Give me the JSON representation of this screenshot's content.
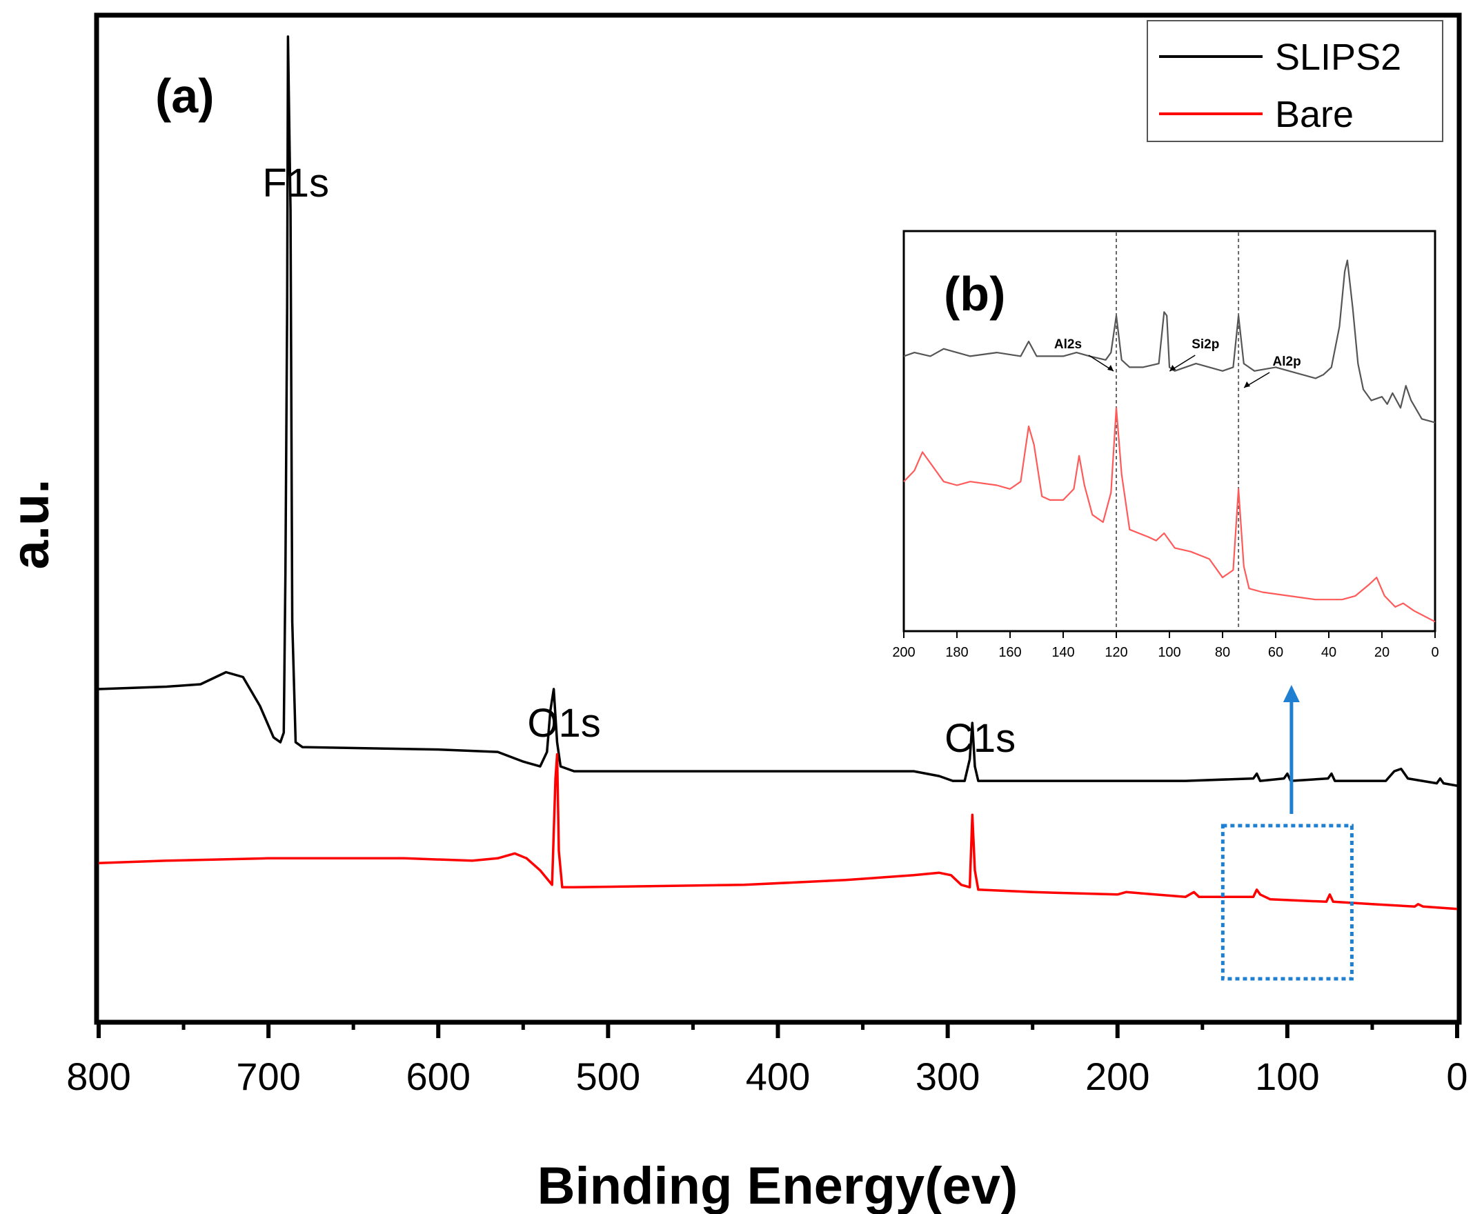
{
  "chart_data": [
    {
      "type": "line",
      "panel_label": "(a)",
      "xlabel": "Binding Energy(ev)",
      "ylabel": "a.u.",
      "xlim": [
        800,
        0
      ],
      "x_ticks": [
        800,
        700,
        600,
        500,
        400,
        300,
        200,
        100,
        0
      ],
      "legend": {
        "position": "top-right",
        "entries": [
          "SLIPS2",
          "Bare"
        ]
      },
      "series": [
        {
          "name": "SLIPS2",
          "color": "#000000",
          "points": [
            [
              800,
              1.92
            ],
            [
              760,
              1.93
            ],
            [
              740,
              1.94
            ],
            [
              725,
              1.99
            ],
            [
              715,
              1.97
            ],
            [
              705,
              1.85
            ],
            [
              697,
              1.72
            ],
            [
              693,
              1.7
            ],
            [
              691,
              1.74
            ],
            [
              690,
              2.4
            ],
            [
              689,
              3.5
            ],
            [
              688.5,
              4.62
            ],
            [
              687,
              3.9
            ],
            [
              686,
              2.2
            ],
            [
              684,
              1.7
            ],
            [
              680,
              1.68
            ],
            [
              600,
              1.67
            ],
            [
              565,
              1.66
            ],
            [
              550,
              1.62
            ],
            [
              540,
              1.6
            ],
            [
              536,
              1.66
            ],
            [
              534,
              1.83
            ],
            [
              532,
              1.92
            ],
            [
              530,
              1.7
            ],
            [
              528,
              1.6
            ],
            [
              520,
              1.58
            ],
            [
              420,
              1.58
            ],
            [
              320,
              1.58
            ],
            [
              305,
              1.56
            ],
            [
              297,
              1.54
            ],
            [
              290,
              1.54
            ],
            [
              287,
              1.63
            ],
            [
              285.5,
              1.78
            ],
            [
              284,
              1.6
            ],
            [
              282,
              1.54
            ],
            [
              220,
              1.54
            ],
            [
              160,
              1.54
            ],
            [
              120,
              1.55
            ],
            [
              118,
              1.57
            ],
            [
              116,
              1.54
            ],
            [
              102,
              1.55
            ],
            [
              100,
              1.57
            ],
            [
              98,
              1.54
            ],
            [
              76,
              1.55
            ],
            [
              74,
              1.57
            ],
            [
              72,
              1.54
            ],
            [
              42,
              1.54
            ],
            [
              37,
              1.58
            ],
            [
              33,
              1.59
            ],
            [
              29,
              1.55
            ],
            [
              12,
              1.53
            ],
            [
              10,
              1.55
            ],
            [
              8,
              1.53
            ],
            [
              0,
              1.52
            ]
          ]
        },
        {
          "name": "Bare",
          "color": "#ff0000",
          "points": [
            [
              800,
              1.2
            ],
            [
              760,
              1.21
            ],
            [
              700,
              1.22
            ],
            [
              620,
              1.22
            ],
            [
              580,
              1.21
            ],
            [
              565,
              1.22
            ],
            [
              555,
              1.24
            ],
            [
              548,
              1.22
            ],
            [
              540,
              1.17
            ],
            [
              533,
              1.11
            ],
            [
              531,
              1.55
            ],
            [
              530,
              1.65
            ],
            [
              529,
              1.25
            ],
            [
              527,
              1.1
            ],
            [
              520,
              1.1
            ],
            [
              420,
              1.11
            ],
            [
              360,
              1.13
            ],
            [
              320,
              1.15
            ],
            [
              305,
              1.16
            ],
            [
              298,
              1.15
            ],
            [
              292,
              1.11
            ],
            [
              287,
              1.1
            ],
            [
              285.5,
              1.4
            ],
            [
              284,
              1.17
            ],
            [
              282,
              1.09
            ],
            [
              250,
              1.08
            ],
            [
              200,
              1.07
            ],
            [
              195,
              1.08
            ],
            [
              160,
              1.06
            ],
            [
              155,
              1.08
            ],
            [
              152,
              1.06
            ],
            [
              120,
              1.06
            ],
            [
              118,
              1.09
            ],
            [
              116,
              1.07
            ],
            [
              110,
              1.05
            ],
            [
              77,
              1.04
            ],
            [
              75,
              1.07
            ],
            [
              73,
              1.04
            ],
            [
              50,
              1.03
            ],
            [
              25,
              1.02
            ],
            [
              23,
              1.03
            ],
            [
              20,
              1.02
            ],
            [
              0,
              1.01
            ]
          ]
        }
      ],
      "peak_labels": [
        {
          "text": "F1s",
          "x": 688
        },
        {
          "text": "O1s",
          "x": 530
        },
        {
          "text": "C1s",
          "x": 285
        }
      ],
      "zoom_box": {
        "x_range": [
          138,
          62
        ],
        "arrow": "up",
        "color": "#1f7fd0"
      }
    },
    {
      "type": "line",
      "panel_label": "(b)",
      "xlim": [
        200,
        0
      ],
      "x_ticks": [
        200,
        180,
        160,
        140,
        120,
        100,
        80,
        60,
        40,
        20,
        0
      ],
      "reference_lines": [
        120,
        74
      ],
      "series": [
        {
          "name": "SLIPS2",
          "color": "#555555",
          "points": [
            [
              200,
              0.72
            ],
            [
              196,
              0.73
            ],
            [
              190,
              0.72
            ],
            [
              185,
              0.74
            ],
            [
              180,
              0.73
            ],
            [
              175,
              0.72
            ],
            [
              165,
              0.73
            ],
            [
              156,
              0.72
            ],
            [
              153,
              0.76
            ],
            [
              150,
              0.72
            ],
            [
              140,
              0.72
            ],
            [
              135,
              0.73
            ],
            [
              130,
              0.72
            ],
            [
              124,
              0.71
            ],
            [
              122,
              0.73
            ],
            [
              120,
              0.83
            ],
            [
              118,
              0.71
            ],
            [
              115,
              0.69
            ],
            [
              110,
              0.69
            ],
            [
              104,
              0.7
            ],
            [
              102,
              0.84
            ],
            [
              101,
              0.83
            ],
            [
              100,
              0.69
            ],
            [
              98,
              0.68
            ],
            [
              90,
              0.7
            ],
            [
              85,
              0.69
            ],
            [
              80,
              0.68
            ],
            [
              76,
              0.69
            ],
            [
              74,
              0.83
            ],
            [
              72,
              0.7
            ],
            [
              68,
              0.68
            ],
            [
              60,
              0.69
            ],
            [
              55,
              0.68
            ],
            [
              45,
              0.66
            ],
            [
              42,
              0.67
            ],
            [
              39,
              0.69
            ],
            [
              36,
              0.8
            ],
            [
              34,
              0.95
            ],
            [
              33,
              0.98
            ],
            [
              31,
              0.85
            ],
            [
              29,
              0.7
            ],
            [
              27,
              0.63
            ],
            [
              24,
              0.6
            ],
            [
              20,
              0.61
            ],
            [
              18,
              0.59
            ],
            [
              16,
              0.62
            ],
            [
              13,
              0.58
            ],
            [
              11,
              0.64
            ],
            [
              9,
              0.6
            ],
            [
              5,
              0.55
            ],
            [
              0,
              0.54
            ]
          ]
        },
        {
          "name": "Bare",
          "color": "#ff5a5a",
          "points": [
            [
              200,
              0.38
            ],
            [
              196,
              0.41
            ],
            [
              193,
              0.46
            ],
            [
              190,
              0.43
            ],
            [
              185,
              0.38
            ],
            [
              180,
              0.37
            ],
            [
              175,
              0.38
            ],
            [
              165,
              0.37
            ],
            [
              160,
              0.36
            ],
            [
              156,
              0.38
            ],
            [
              153,
              0.53
            ],
            [
              151,
              0.48
            ],
            [
              148,
              0.34
            ],
            [
              145,
              0.33
            ],
            [
              140,
              0.33
            ],
            [
              136,
              0.36
            ],
            [
              134,
              0.45
            ],
            [
              132,
              0.37
            ],
            [
              129,
              0.29
            ],
            [
              125,
              0.27
            ],
            [
              122,
              0.35
            ],
            [
              120,
              0.58
            ],
            [
              118,
              0.4
            ],
            [
              115,
              0.25
            ],
            [
              108,
              0.23
            ],
            [
              105,
              0.22
            ],
            [
              102,
              0.24
            ],
            [
              98,
              0.2
            ],
            [
              92,
              0.19
            ],
            [
              85,
              0.17
            ],
            [
              80,
              0.12
            ],
            [
              76,
              0.14
            ],
            [
              74,
              0.36
            ],
            [
              72,
              0.15
            ],
            [
              70,
              0.09
            ],
            [
              65,
              0.08
            ],
            [
              55,
              0.07
            ],
            [
              45,
              0.06
            ],
            [
              35,
              0.06
            ],
            [
              30,
              0.07
            ],
            [
              25,
              0.1
            ],
            [
              22,
              0.12
            ],
            [
              19,
              0.07
            ],
            [
              15,
              0.04
            ],
            [
              12,
              0.05
            ],
            [
              8,
              0.03
            ],
            [
              0,
              0.0
            ]
          ]
        }
      ],
      "peak_labels": [
        {
          "text": "Al2s",
          "x": 120
        },
        {
          "text": "Si2p",
          "x": 102
        },
        {
          "text": "Al2p",
          "x": 74
        }
      ]
    }
  ]
}
